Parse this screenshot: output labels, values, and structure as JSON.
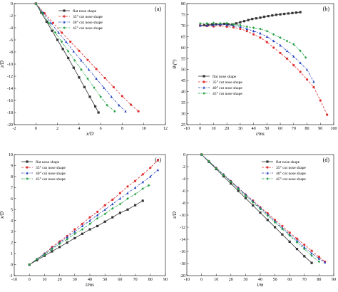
{
  "chart_data": [
    {
      "type": "line",
      "panel_label": "(a)",
      "xlabel": "x/D",
      "ylabel": "z/D",
      "xlim": [
        -2,
        12
      ],
      "ylim": [
        -20,
        0
      ],
      "xticks": [
        -2,
        0,
        2,
        4,
        6,
        8,
        10,
        12
      ],
      "yticks": [
        0,
        -2,
        -4,
        -6,
        -8,
        -10,
        -12,
        -14,
        -16,
        -18,
        -20
      ],
      "legend_position": "top-left",
      "series": [
        {
          "name": "flat nose shape",
          "color": "#333333",
          "dash": "solid",
          "marker": "square",
          "x": [
            0,
            0.5,
            1,
            1.5,
            2,
            2.5,
            3,
            3.5,
            4,
            4.5,
            5,
            5.5,
            5.8
          ],
          "y": [
            0,
            -1.5,
            -3,
            -4.5,
            -6,
            -7.5,
            -9,
            -10.6,
            -12.2,
            -13.8,
            -15.4,
            -17,
            -18
          ]
        },
        {
          "name": "35° cut nose shape",
          "color": "#e03030",
          "dash": "dash",
          "marker": "circle",
          "x": [
            0,
            0.8,
            1.6,
            2.4,
            3.2,
            4,
            4.8,
            5.6,
            6.4,
            7.2,
            8,
            8.8,
            9.5
          ],
          "y": [
            0,
            -1.6,
            -3.2,
            -4.8,
            -6.3,
            -7.8,
            -9.3,
            -10.8,
            -12.3,
            -13.8,
            -15.3,
            -16.7,
            -17.8
          ]
        },
        {
          "name": "40° cut nose shape",
          "color": "#2040c0",
          "dash": "dashdot",
          "marker": "triangle",
          "x": [
            0,
            0.7,
            1.4,
            2.1,
            2.8,
            3.5,
            4.2,
            4.9,
            5.6,
            6.3,
            7,
            7.7,
            8.3
          ],
          "y": [
            0,
            -1.6,
            -3.2,
            -4.8,
            -6.3,
            -7.9,
            -9.4,
            -10.9,
            -12.4,
            -13.9,
            -15.4,
            -16.8,
            -17.8
          ]
        },
        {
          "name": "45° cut nose shape",
          "color": "#20a040",
          "dash": "dashdotdot",
          "marker": "diamond",
          "x": [
            0,
            0.6,
            1.2,
            1.8,
            2.4,
            3,
            3.6,
            4.2,
            4.8,
            5.4,
            6,
            6.6,
            7.3
          ],
          "y": [
            0,
            -1.6,
            -3.2,
            -4.8,
            -6.3,
            -7.9,
            -9.4,
            -10.9,
            -12.4,
            -13.9,
            -15.4,
            -16.8,
            -17.8
          ]
        }
      ]
    },
    {
      "type": "line",
      "panel_label": "(b)",
      "xlabel": "t/ms",
      "ylabel": "θ/(°)",
      "xlim": [
        -10,
        100
      ],
      "ylim": [
        25,
        80
      ],
      "xticks": [
        -10,
        0,
        10,
        20,
        30,
        40,
        50,
        60,
        70,
        80,
        90,
        100
      ],
      "yticks": [
        25,
        30,
        35,
        40,
        45,
        50,
        55,
        60,
        65,
        70,
        75,
        80
      ],
      "legend_position": "bottom-left",
      "series": [
        {
          "name": "flat nose shape",
          "color": "#333333",
          "dash": "solid",
          "marker": "square",
          "x": [
            0,
            3,
            6,
            9,
            12,
            15,
            18,
            21,
            24,
            27,
            30,
            33,
            36,
            39,
            42,
            45,
            48,
            51,
            54,
            57,
            60,
            63,
            66,
            69,
            72,
            75
          ],
          "y": [
            70,
            70.2,
            70.3,
            70.5,
            70.6,
            70.5,
            70.8,
            70.6,
            70.5,
            71,
            71.5,
            72,
            72.5,
            73,
            73.3,
            73.6,
            74,
            74.3,
            74.6,
            74.9,
            75.1,
            75.3,
            75.5,
            75.7,
            75.9,
            76.1
          ]
        },
        {
          "name": "35° cut nose shape",
          "color": "#e03030",
          "dash": "dash",
          "marker": "circle",
          "x": [
            0,
            5,
            10,
            15,
            20,
            25,
            30,
            35,
            40,
            45,
            50,
            55,
            60,
            65,
            70,
            75,
            80,
            85,
            90,
            95
          ],
          "y": [
            70,
            69.8,
            69.6,
            70,
            69.5,
            69.2,
            68.5,
            67.5,
            66,
            64.5,
            62.5,
            60,
            57.5,
            55,
            52,
            49,
            45.5,
            42,
            36,
            29.5
          ]
        },
        {
          "name": "40° cut nose shape",
          "color": "#2040c0",
          "dash": "dashdot",
          "marker": "triangle",
          "x": [
            0,
            5,
            10,
            15,
            20,
            25,
            30,
            35,
            40,
            45,
            50,
            55,
            60,
            65,
            70,
            75,
            80,
            85
          ],
          "y": [
            70,
            70,
            70.2,
            70.5,
            70.3,
            70,
            69.5,
            68.5,
            67.5,
            66.5,
            65,
            63,
            61,
            58.5,
            56,
            53,
            50,
            44.5
          ]
        },
        {
          "name": "45° cut nose shape",
          "color": "#20a040",
          "dash": "dashdotdot",
          "marker": "diamond",
          "x": [
            0,
            5,
            10,
            15,
            20,
            25,
            30,
            35,
            40,
            45,
            50,
            55,
            60,
            65,
            70,
            75,
            79
          ],
          "y": [
            71,
            71,
            71.2,
            71,
            71.1,
            70.5,
            70.2,
            69.5,
            69,
            68.5,
            67.5,
            66,
            64.5,
            63,
            61.5,
            58.5,
            55.5
          ]
        }
      ]
    },
    {
      "type": "line",
      "panel_label": "(c)",
      "xlabel": "t/ms",
      "ylabel": "x/D",
      "xlim": [
        -10,
        90
      ],
      "ylim": [
        -1,
        10
      ],
      "xticks": [
        -10,
        0,
        10,
        20,
        30,
        40,
        50,
        60,
        70,
        80,
        90
      ],
      "yticks": [
        -1,
        0,
        1,
        2,
        3,
        4,
        5,
        6,
        7,
        8,
        9,
        10
      ],
      "legend_position": "top-left",
      "series": [
        {
          "name": "flat nose shape",
          "color": "#333333",
          "dash": "solid",
          "marker": "square",
          "x": [
            0,
            5,
            10,
            15,
            20,
            25,
            30,
            35,
            40,
            45,
            50,
            55,
            60,
            65,
            70,
            75
          ],
          "y": [
            0,
            0.4,
            0.8,
            1.2,
            1.6,
            2.0,
            2.4,
            2.8,
            3.2,
            3.5,
            3.9,
            4.3,
            4.7,
            5.0,
            5.4,
            5.8
          ]
        },
        {
          "name": "35° cut nose shape",
          "color": "#e03030",
          "dash": "dash",
          "marker": "circle",
          "x": [
            0,
            5,
            10,
            15,
            20,
            25,
            30,
            35,
            40,
            45,
            50,
            55,
            60,
            65,
            70,
            75,
            80,
            85
          ],
          "y": [
            0,
            0.5,
            1.0,
            1.6,
            2.1,
            2.6,
            3.2,
            3.7,
            4.3,
            4.8,
            5.4,
            5.9,
            6.5,
            7.1,
            7.6,
            8.2,
            8.8,
            9.5
          ]
        },
        {
          "name": "40° cut nose shape",
          "color": "#2040c0",
          "dash": "dashdot",
          "marker": "triangle",
          "x": [
            0,
            5,
            10,
            15,
            20,
            25,
            30,
            35,
            40,
            45,
            50,
            55,
            60,
            65,
            70,
            75,
            80,
            85
          ],
          "y": [
            0,
            0.5,
            1.0,
            1.5,
            2.0,
            2.5,
            3.0,
            3.5,
            4.0,
            4.5,
            5.0,
            5.5,
            6.0,
            6.5,
            7.0,
            7.5,
            8.0,
            8.6
          ]
        },
        {
          "name": "45° cut nose shape",
          "color": "#20a040",
          "dash": "dashdotdot",
          "marker": "diamond",
          "x": [
            0,
            5,
            10,
            15,
            20,
            25,
            30,
            35,
            40,
            45,
            50,
            55,
            60,
            65,
            70,
            75,
            79
          ],
          "y": [
            0,
            0.5,
            0.9,
            1.4,
            1.9,
            2.3,
            2.8,
            3.2,
            3.7,
            4.2,
            4.6,
            5.1,
            5.5,
            6.0,
            6.4,
            6.9,
            7.2
          ]
        }
      ]
    },
    {
      "type": "line",
      "panel_label": "(d)",
      "xlabel": "t/m",
      "ylabel": "z/D",
      "xlim": [
        -10,
        90
      ],
      "ylim": [
        -20,
        0
      ],
      "xticks": [
        -10,
        0,
        10,
        20,
        30,
        40,
        50,
        60,
        70,
        80,
        90
      ],
      "yticks": [
        0,
        -2,
        -4,
        -6,
        -8,
        -10,
        -12,
        -14,
        -16,
        -18,
        -20
      ],
      "legend_position": "top-right",
      "series": [
        {
          "name": "flat nose shape",
          "color": "#333333",
          "dash": "solid",
          "marker": "square",
          "x": [
            0,
            5,
            10,
            15,
            20,
            25,
            30,
            35,
            40,
            45,
            50,
            55,
            60,
            65,
            70,
            75
          ],
          "y": [
            0,
            -1.2,
            -2.4,
            -3.6,
            -4.8,
            -6.0,
            -7.2,
            -8.4,
            -9.6,
            -10.8,
            -12.0,
            -13.2,
            -14.4,
            -15.6,
            -16.8,
            -17.9
          ]
        },
        {
          "name": "35° cut nose shape",
          "color": "#e03030",
          "dash": "dash",
          "marker": "circle",
          "x": [
            0,
            5,
            10,
            15,
            20,
            25,
            30,
            35,
            40,
            45,
            50,
            55,
            60,
            65,
            70,
            75,
            80,
            84
          ],
          "y": [
            0,
            -1.1,
            -2.2,
            -3.3,
            -4.4,
            -5.5,
            -6.6,
            -7.6,
            -8.7,
            -9.7,
            -10.8,
            -11.8,
            -12.9,
            -13.9,
            -14.9,
            -15.9,
            -16.9,
            -17.7
          ]
        },
        {
          "name": "40° cut nose shape",
          "color": "#2040c0",
          "dash": "dashdot",
          "marker": "triangle",
          "x": [
            0,
            5,
            10,
            15,
            20,
            25,
            30,
            35,
            40,
            45,
            50,
            55,
            60,
            65,
            70,
            75,
            80,
            84
          ],
          "y": [
            0,
            -1.1,
            -2.2,
            -3.3,
            -4.4,
            -5.5,
            -6.6,
            -7.7,
            -8.8,
            -9.9,
            -11.0,
            -12.1,
            -13.2,
            -14.2,
            -15.3,
            -16.3,
            -17.2,
            -17.8
          ]
        },
        {
          "name": "45° cut nose shape",
          "color": "#20a040",
          "dash": "dashdotdot",
          "marker": "diamond",
          "x": [
            0,
            5,
            10,
            15,
            20,
            25,
            30,
            35,
            40,
            45,
            50,
            55,
            60,
            65,
            70,
            75,
            80
          ],
          "y": [
            0,
            -1.1,
            -2.3,
            -3.4,
            -4.5,
            -5.7,
            -6.8,
            -7.9,
            -9.0,
            -10.1,
            -11.2,
            -12.3,
            -13.4,
            -14.5,
            -15.6,
            -16.7,
            -17.7
          ]
        }
      ]
    }
  ]
}
